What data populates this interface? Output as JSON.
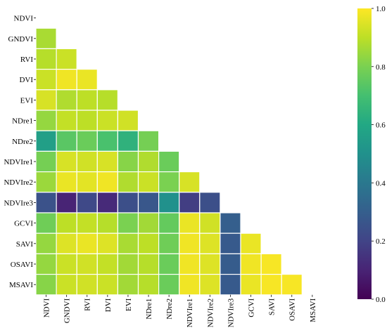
{
  "chart_data": {
    "type": "heatmap",
    "title": "",
    "xlabel": "",
    "ylabel": "",
    "labels": [
      "NDVI",
      "GNDVI",
      "RVI",
      "DVI",
      "EVI",
      "NDre1",
      "NDre2",
      "NDVIre1",
      "NDVIre2",
      "NDVIre3",
      "GCVI",
      "SAVI",
      "OSAVI",
      "MSAVI"
    ],
    "mask": "upper-triangle-including-diagonal",
    "vmin": 0.0,
    "vmax": 1.0,
    "colormap": "viridis",
    "colorbar_ticks": [
      "0.0",
      "0.2",
      "0.4",
      "0.6",
      "0.8",
      "1.0"
    ],
    "matrix": [
      [
        null,
        null,
        null,
        null,
        null,
        null,
        null,
        null,
        null,
        null,
        null,
        null,
        null,
        null
      ],
      [
        0.87,
        null,
        null,
        null,
        null,
        null,
        null,
        null,
        null,
        null,
        null,
        null,
        null,
        null
      ],
      [
        0.89,
        0.92,
        null,
        null,
        null,
        null,
        null,
        null,
        null,
        null,
        null,
        null,
        null,
        null
      ],
      [
        0.92,
        0.98,
        0.97,
        null,
        null,
        null,
        null,
        null,
        null,
        null,
        null,
        null,
        null,
        null
      ],
      [
        0.94,
        0.88,
        0.9,
        0.89,
        null,
        null,
        null,
        null,
        null,
        null,
        null,
        null,
        null,
        null
      ],
      [
        0.84,
        0.91,
        0.9,
        0.92,
        0.93,
        null,
        null,
        null,
        null,
        null,
        null,
        null,
        null,
        null
      ],
      [
        0.56,
        0.74,
        0.77,
        0.71,
        0.64,
        0.79,
        null,
        null,
        null,
        null,
        null,
        null,
        null,
        null
      ],
      [
        0.79,
        0.94,
        0.93,
        0.94,
        0.82,
        0.88,
        0.77,
        null,
        null,
        null,
        null,
        null,
        null,
        null
      ],
      [
        0.85,
        0.97,
        0.96,
        0.98,
        0.88,
        0.92,
        0.8,
        0.94,
        null,
        null,
        null,
        null,
        null,
        null
      ],
      [
        0.25,
        0.1,
        0.22,
        0.12,
        0.24,
        0.27,
        0.5,
        0.18,
        0.24,
        null,
        null,
        null,
        null,
        null
      ],
      [
        0.78,
        0.9,
        0.91,
        0.89,
        0.8,
        0.86,
        0.76,
        0.97,
        0.93,
        0.3,
        null,
        null,
        null,
        null
      ],
      [
        0.84,
        0.95,
        0.97,
        0.95,
        0.87,
        0.9,
        0.78,
        0.98,
        0.95,
        0.28,
        0.97,
        null,
        null,
        null
      ],
      [
        0.84,
        0.92,
        0.93,
        0.91,
        0.86,
        0.89,
        0.77,
        0.98,
        0.95,
        0.29,
        0.98,
        0.99,
        null,
        null
      ],
      [
        0.82,
        0.92,
        0.93,
        0.92,
        0.86,
        0.89,
        0.77,
        0.98,
        0.95,
        0.28,
        0.97,
        0.99,
        0.99,
        null
      ]
    ]
  }
}
